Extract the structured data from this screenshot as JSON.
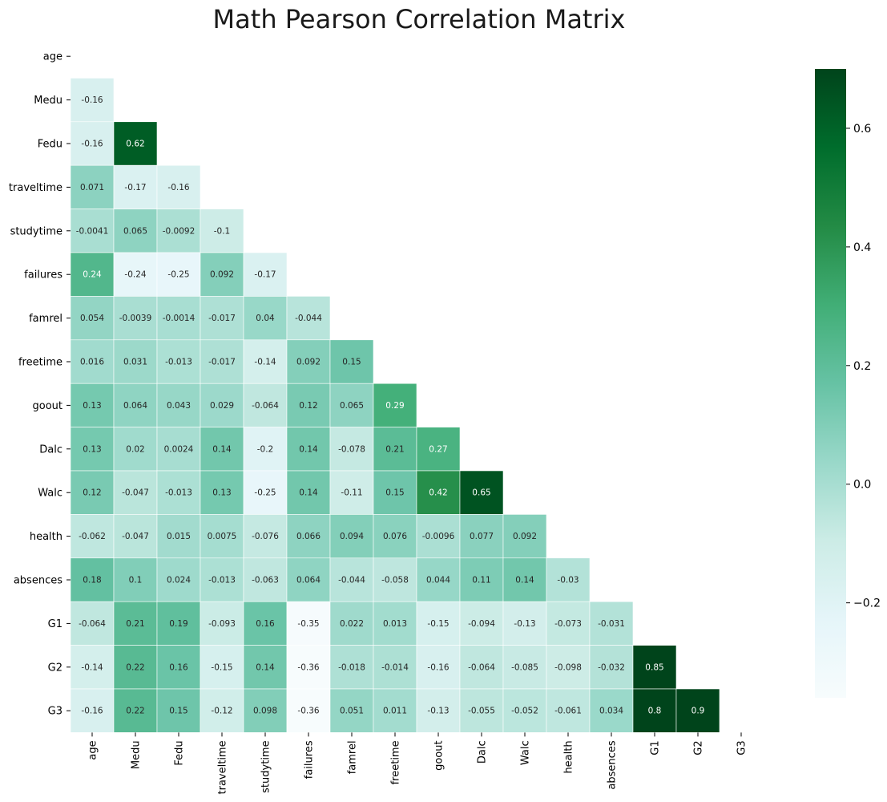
{
  "chart_data": {
    "type": "heatmap",
    "title": "Math Pearson Correlation Matrix",
    "variables": [
      "age",
      "Medu",
      "Fedu",
      "traveltime",
      "studytime",
      "failures",
      "famrel",
      "freetime",
      "goout",
      "Dalc",
      "Walc",
      "health",
      "absences",
      "G1",
      "G2",
      "G3"
    ],
    "cells": [
      {
        "row": "Medu",
        "col": "age",
        "value": -0.16,
        "label": "-0.16"
      },
      {
        "row": "Fedu",
        "col": "age",
        "value": -0.16,
        "label": "-0.16"
      },
      {
        "row": "Fedu",
        "col": "Medu",
        "value": 0.62,
        "label": "0.62"
      },
      {
        "row": "traveltime",
        "col": "age",
        "value": 0.071,
        "label": "0.071"
      },
      {
        "row": "traveltime",
        "col": "Medu",
        "value": -0.17,
        "label": "-0.17"
      },
      {
        "row": "traveltime",
        "col": "Fedu",
        "value": -0.16,
        "label": "-0.16"
      },
      {
        "row": "studytime",
        "col": "age",
        "value": -0.0041,
        "label": "-0.0041"
      },
      {
        "row": "studytime",
        "col": "Medu",
        "value": 0.065,
        "label": "0.065"
      },
      {
        "row": "studytime",
        "col": "Fedu",
        "value": -0.0092,
        "label": "-0.0092"
      },
      {
        "row": "studytime",
        "col": "traveltime",
        "value": -0.1,
        "label": "-0.1"
      },
      {
        "row": "failures",
        "col": "age",
        "value": 0.24,
        "label": "0.24"
      },
      {
        "row": "failures",
        "col": "Medu",
        "value": -0.24,
        "label": "-0.24"
      },
      {
        "row": "failures",
        "col": "Fedu",
        "value": -0.25,
        "label": "-0.25"
      },
      {
        "row": "failures",
        "col": "traveltime",
        "value": 0.092,
        "label": "0.092"
      },
      {
        "row": "failures",
        "col": "studytime",
        "value": -0.17,
        "label": "-0.17"
      },
      {
        "row": "famrel",
        "col": "age",
        "value": 0.054,
        "label": "0.054"
      },
      {
        "row": "famrel",
        "col": "Medu",
        "value": -0.0039,
        "label": "-0.0039"
      },
      {
        "row": "famrel",
        "col": "Fedu",
        "value": -0.0014,
        "label": "-0.0014"
      },
      {
        "row": "famrel",
        "col": "traveltime",
        "value": -0.017,
        "label": "-0.017"
      },
      {
        "row": "famrel",
        "col": "studytime",
        "value": 0.04,
        "label": "0.04"
      },
      {
        "row": "famrel",
        "col": "failures",
        "value": -0.044,
        "label": "-0.044"
      },
      {
        "row": "freetime",
        "col": "age",
        "value": 0.016,
        "label": "0.016"
      },
      {
        "row": "freetime",
        "col": "Medu",
        "value": 0.031,
        "label": "0.031"
      },
      {
        "row": "freetime",
        "col": "Fedu",
        "value": -0.013,
        "label": "-0.013"
      },
      {
        "row": "freetime",
        "col": "traveltime",
        "value": -0.017,
        "label": "-0.017"
      },
      {
        "row": "freetime",
        "col": "studytime",
        "value": -0.14,
        "label": "-0.14"
      },
      {
        "row": "freetime",
        "col": "failures",
        "value": 0.092,
        "label": "0.092"
      },
      {
        "row": "freetime",
        "col": "famrel",
        "value": 0.15,
        "label": "0.15"
      },
      {
        "row": "goout",
        "col": "age",
        "value": 0.13,
        "label": "0.13"
      },
      {
        "row": "goout",
        "col": "Medu",
        "value": 0.064,
        "label": "0.064"
      },
      {
        "row": "goout",
        "col": "Fedu",
        "value": 0.043,
        "label": "0.043"
      },
      {
        "row": "goout",
        "col": "traveltime",
        "value": 0.029,
        "label": "0.029"
      },
      {
        "row": "goout",
        "col": "studytime",
        "value": -0.064,
        "label": "-0.064"
      },
      {
        "row": "goout",
        "col": "failures",
        "value": 0.12,
        "label": "0.12"
      },
      {
        "row": "goout",
        "col": "famrel",
        "value": 0.065,
        "label": "0.065"
      },
      {
        "row": "goout",
        "col": "freetime",
        "value": 0.29,
        "label": "0.29"
      },
      {
        "row": "Dalc",
        "col": "age",
        "value": 0.13,
        "label": "0.13"
      },
      {
        "row": "Dalc",
        "col": "Medu",
        "value": 0.02,
        "label": "0.02"
      },
      {
        "row": "Dalc",
        "col": "Fedu",
        "value": 0.0024,
        "label": "0.0024"
      },
      {
        "row": "Dalc",
        "col": "traveltime",
        "value": 0.14,
        "label": "0.14"
      },
      {
        "row": "Dalc",
        "col": "studytime",
        "value": -0.2,
        "label": "-0.2"
      },
      {
        "row": "Dalc",
        "col": "failures",
        "value": 0.14,
        "label": "0.14"
      },
      {
        "row": "Dalc",
        "col": "famrel",
        "value": -0.078,
        "label": "-0.078"
      },
      {
        "row": "Dalc",
        "col": "freetime",
        "value": 0.21,
        "label": "0.21"
      },
      {
        "row": "Dalc",
        "col": "goout",
        "value": 0.27,
        "label": "0.27"
      },
      {
        "row": "Walc",
        "col": "age",
        "value": 0.12,
        "label": "0.12"
      },
      {
        "row": "Walc",
        "col": "Medu",
        "value": -0.047,
        "label": "-0.047"
      },
      {
        "row": "Walc",
        "col": "Fedu",
        "value": -0.013,
        "label": "-0.013"
      },
      {
        "row": "Walc",
        "col": "traveltime",
        "value": 0.13,
        "label": "0.13"
      },
      {
        "row": "Walc",
        "col": "studytime",
        "value": -0.25,
        "label": "-0.25"
      },
      {
        "row": "Walc",
        "col": "failures",
        "value": 0.14,
        "label": "0.14"
      },
      {
        "row": "Walc",
        "col": "famrel",
        "value": -0.11,
        "label": "-0.11"
      },
      {
        "row": "Walc",
        "col": "freetime",
        "value": 0.15,
        "label": "0.15"
      },
      {
        "row": "Walc",
        "col": "goout",
        "value": 0.42,
        "label": "0.42"
      },
      {
        "row": "Walc",
        "col": "Dalc",
        "value": 0.65,
        "label": "0.65"
      },
      {
        "row": "health",
        "col": "age",
        "value": -0.062,
        "label": "-0.062"
      },
      {
        "row": "health",
        "col": "Medu",
        "value": -0.047,
        "label": "-0.047"
      },
      {
        "row": "health",
        "col": "Fedu",
        "value": 0.015,
        "label": "0.015"
      },
      {
        "row": "health",
        "col": "traveltime",
        "value": 0.0075,
        "label": "0.0075"
      },
      {
        "row": "health",
        "col": "studytime",
        "value": -0.076,
        "label": "-0.076"
      },
      {
        "row": "health",
        "col": "failures",
        "value": 0.066,
        "label": "0.066"
      },
      {
        "row": "health",
        "col": "famrel",
        "value": 0.094,
        "label": "0.094"
      },
      {
        "row": "health",
        "col": "freetime",
        "value": 0.076,
        "label": "0.076"
      },
      {
        "row": "health",
        "col": "goout",
        "value": -0.0096,
        "label": "-0.0096"
      },
      {
        "row": "health",
        "col": "Dalc",
        "value": 0.077,
        "label": "0.077"
      },
      {
        "row": "health",
        "col": "Walc",
        "value": 0.092,
        "label": "0.092"
      },
      {
        "row": "absences",
        "col": "age",
        "value": 0.18,
        "label": "0.18"
      },
      {
        "row": "absences",
        "col": "Medu",
        "value": 0.1,
        "label": "0.1"
      },
      {
        "row": "absences",
        "col": "Fedu",
        "value": 0.024,
        "label": "0.024"
      },
      {
        "row": "absences",
        "col": "traveltime",
        "value": -0.013,
        "label": "-0.013"
      },
      {
        "row": "absences",
        "col": "studytime",
        "value": -0.063,
        "label": "-0.063"
      },
      {
        "row": "absences",
        "col": "failures",
        "value": 0.064,
        "label": "0.064"
      },
      {
        "row": "absences",
        "col": "famrel",
        "value": -0.044,
        "label": "-0.044"
      },
      {
        "row": "absences",
        "col": "freetime",
        "value": -0.058,
        "label": "-0.058"
      },
      {
        "row": "absences",
        "col": "goout",
        "value": 0.044,
        "label": "0.044"
      },
      {
        "row": "absences",
        "col": "Dalc",
        "value": 0.11,
        "label": "0.11"
      },
      {
        "row": "absences",
        "col": "Walc",
        "value": 0.14,
        "label": "0.14"
      },
      {
        "row": "absences",
        "col": "health",
        "value": -0.03,
        "label": "-0.03"
      },
      {
        "row": "G1",
        "col": "age",
        "value": -0.064,
        "label": "-0.064"
      },
      {
        "row": "G1",
        "col": "Medu",
        "value": 0.21,
        "label": "0.21"
      },
      {
        "row": "G1",
        "col": "Fedu",
        "value": 0.19,
        "label": "0.19"
      },
      {
        "row": "G1",
        "col": "traveltime",
        "value": -0.093,
        "label": "-0.093"
      },
      {
        "row": "G1",
        "col": "studytime",
        "value": 0.16,
        "label": "0.16"
      },
      {
        "row": "G1",
        "col": "failures",
        "value": -0.35,
        "label": "-0.35"
      },
      {
        "row": "G1",
        "col": "famrel",
        "value": 0.022,
        "label": "0.022"
      },
      {
        "row": "G1",
        "col": "freetime",
        "value": 0.013,
        "label": "0.013"
      },
      {
        "row": "G1",
        "col": "goout",
        "value": -0.15,
        "label": "-0.15"
      },
      {
        "row": "G1",
        "col": "Dalc",
        "value": -0.094,
        "label": "-0.094"
      },
      {
        "row": "G1",
        "col": "Walc",
        "value": -0.13,
        "label": "-0.13"
      },
      {
        "row": "G1",
        "col": "health",
        "value": -0.073,
        "label": "-0.073"
      },
      {
        "row": "G1",
        "col": "absences",
        "value": -0.031,
        "label": "-0.031"
      },
      {
        "row": "G2",
        "col": "age",
        "value": -0.14,
        "label": "-0.14"
      },
      {
        "row": "G2",
        "col": "Medu",
        "value": 0.22,
        "label": "0.22"
      },
      {
        "row": "G2",
        "col": "Fedu",
        "value": 0.16,
        "label": "0.16"
      },
      {
        "row": "G2",
        "col": "traveltime",
        "value": -0.15,
        "label": "-0.15"
      },
      {
        "row": "G2",
        "col": "studytime",
        "value": 0.14,
        "label": "0.14"
      },
      {
        "row": "G2",
        "col": "failures",
        "value": -0.36,
        "label": "-0.36"
      },
      {
        "row": "G2",
        "col": "famrel",
        "value": -0.018,
        "label": "-0.018"
      },
      {
        "row": "G2",
        "col": "freetime",
        "value": -0.014,
        "label": "-0.014"
      },
      {
        "row": "G2",
        "col": "goout",
        "value": -0.16,
        "label": "-0.16"
      },
      {
        "row": "G2",
        "col": "Dalc",
        "value": -0.064,
        "label": "-0.064"
      },
      {
        "row": "G2",
        "col": "Walc",
        "value": -0.085,
        "label": "-0.085"
      },
      {
        "row": "G2",
        "col": "health",
        "value": -0.098,
        "label": "-0.098"
      },
      {
        "row": "G2",
        "col": "absences",
        "value": -0.032,
        "label": "-0.032"
      },
      {
        "row": "G2",
        "col": "G1",
        "value": 0.85,
        "label": "0.85"
      },
      {
        "row": "G3",
        "col": "age",
        "value": -0.16,
        "label": "-0.16"
      },
      {
        "row": "G3",
        "col": "Medu",
        "value": 0.22,
        "label": "0.22"
      },
      {
        "row": "G3",
        "col": "Fedu",
        "value": 0.15,
        "label": "0.15"
      },
      {
        "row": "G3",
        "col": "traveltime",
        "value": -0.12,
        "label": "-0.12"
      },
      {
        "row": "G3",
        "col": "studytime",
        "value": 0.098,
        "label": "0.098"
      },
      {
        "row": "G3",
        "col": "failures",
        "value": -0.36,
        "label": "-0.36"
      },
      {
        "row": "G3",
        "col": "famrel",
        "value": 0.051,
        "label": "0.051"
      },
      {
        "row": "G3",
        "col": "freetime",
        "value": 0.011,
        "label": "0.011"
      },
      {
        "row": "G3",
        "col": "goout",
        "value": -0.13,
        "label": "-0.13"
      },
      {
        "row": "G3",
        "col": "Dalc",
        "value": -0.055,
        "label": "-0.055"
      },
      {
        "row": "G3",
        "col": "Walc",
        "value": -0.052,
        "label": "-0.052"
      },
      {
        "row": "G3",
        "col": "health",
        "value": -0.061,
        "label": "-0.061"
      },
      {
        "row": "G3",
        "col": "absences",
        "value": 0.034,
        "label": "0.034"
      },
      {
        "row": "G3",
        "col": "G1",
        "value": 0.8,
        "label": "0.8"
      },
      {
        "row": "G3",
        "col": "G2",
        "value": 0.9,
        "label": "0.9"
      }
    ],
    "color_scale": {
      "name": "Greens",
      "vmin": -0.36,
      "vmax": 0.7,
      "stops": [
        "#f7fcfd",
        "#e5f5f9",
        "#ccece6",
        "#99d8c9",
        "#66c2a4",
        "#41ae76",
        "#238b45",
        "#006d2c",
        "#00441b"
      ]
    },
    "colorbar": {
      "ticks": [
        -0.2,
        0.0,
        0.2,
        0.4,
        0.6
      ],
      "tick_labels": [
        "−0.2",
        "0.0",
        "0.2",
        "0.4",
        "0.6"
      ]
    },
    "mask": "upper-triangle-including-diagonal",
    "grid": false
  }
}
